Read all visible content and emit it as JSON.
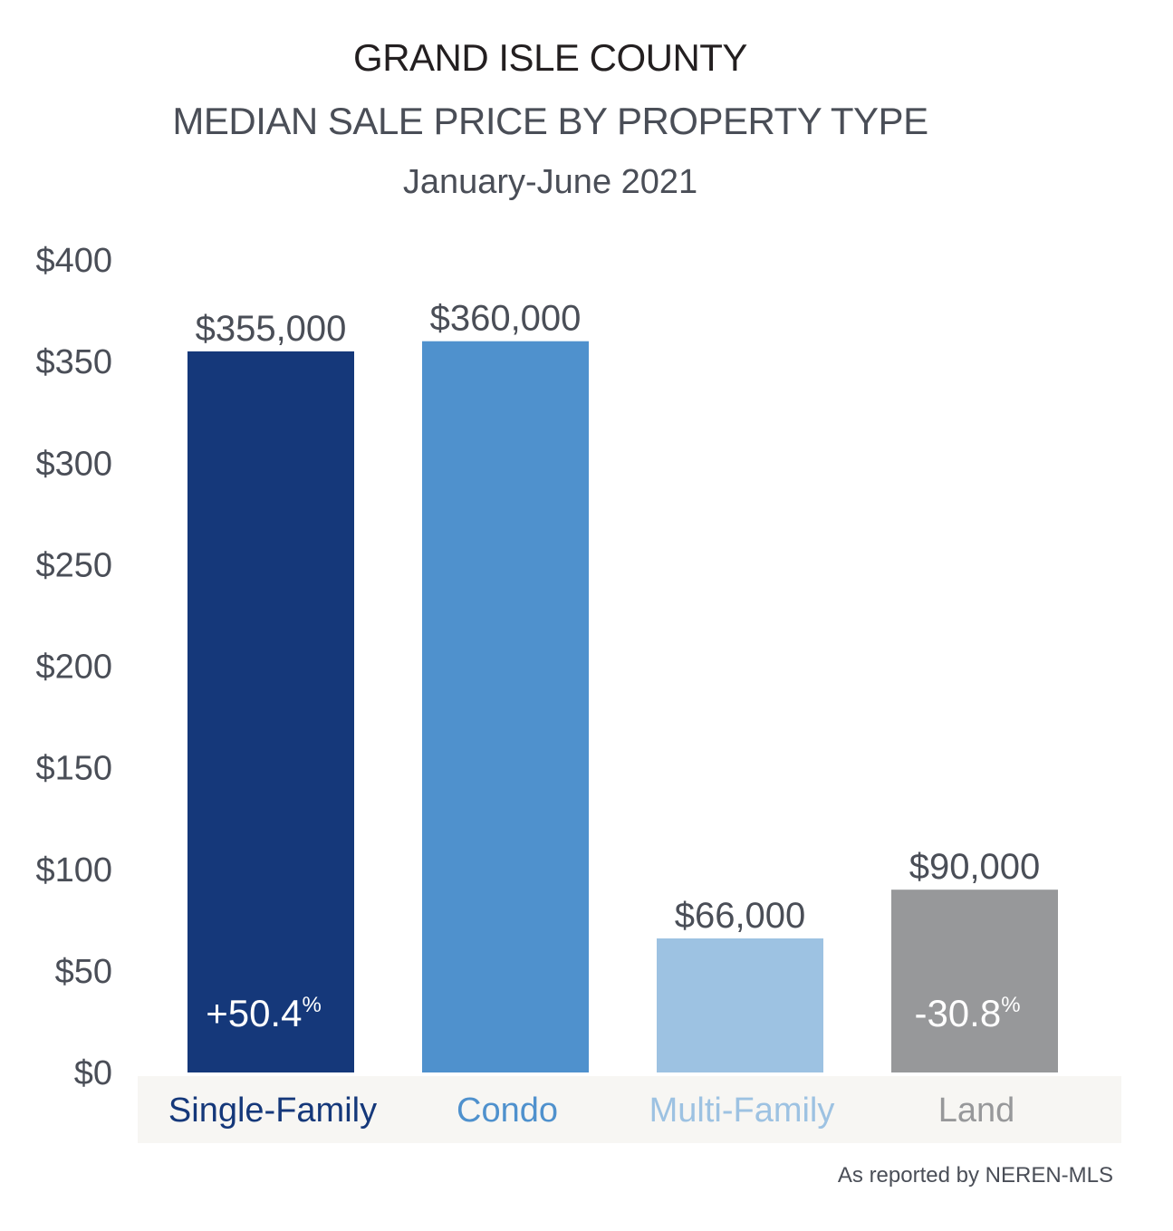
{
  "header": {
    "title": "GRAND ISLE COUNTY",
    "subtitle": "MEDIAN SALE PRICE BY PROPERTY TYPE",
    "period": "January-June 2021"
  },
  "source_note": "As reported by NEREN-MLS",
  "colors": {
    "single_family": "#15387a",
    "condo": "#4f91cd",
    "multi_family": "#9dc2e2",
    "land": "#97989a",
    "category_band": "#f7f6f3"
  },
  "chart_data": {
    "type": "bar",
    "categories": [
      "Single-Family",
      "Condo",
      "Multi-Family",
      "Land"
    ],
    "values": [
      355,
      360,
      66,
      90
    ],
    "value_labels": [
      "$355,000",
      "$360,000",
      "$66,000",
      "$90,000"
    ],
    "change_labels": [
      "+50.4",
      "",
      "",
      "-30.8"
    ],
    "change_unit": "%",
    "ylim": [
      0,
      400
    ],
    "yticks": [
      0,
      50,
      100,
      150,
      200,
      250,
      300,
      350,
      400
    ],
    "ytick_labels": [
      "$0",
      "$50",
      "$100",
      "$150",
      "$200",
      "$250",
      "$300",
      "$350",
      "$400"
    ],
    "bar_colors": [
      "#15387a",
      "#4f91cd",
      "#9dc2e2",
      "#97989a"
    ],
    "grid": false
  }
}
